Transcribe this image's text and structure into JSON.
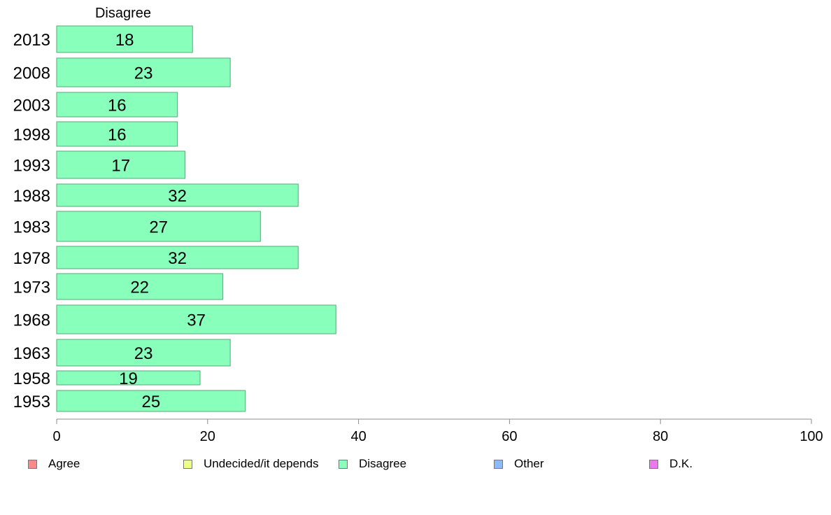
{
  "chart_data": {
    "type": "bar",
    "orientation": "horizontal",
    "title": "Disagree",
    "categories": [
      "2013",
      "2008",
      "2003",
      "1998",
      "1993",
      "1988",
      "1983",
      "1978",
      "1973",
      "1968",
      "1963",
      "1958",
      "1953"
    ],
    "values": [
      18,
      23,
      16,
      16,
      17,
      32,
      27,
      32,
      22,
      37,
      23,
      19,
      25
    ],
    "xlim": [
      0,
      100
    ],
    "xticks": [
      "0",
      "20",
      "40",
      "60",
      "80",
      "100"
    ],
    "bar_color": "#88ffbb",
    "grid": false,
    "legend_position": "bottom",
    "legend": [
      {
        "label": "Agree",
        "color": "#ff8888"
      },
      {
        "label": "Undecided/it depends",
        "color": "#eeff88"
      },
      {
        "label": "Disagree",
        "color": "#88ffbb"
      },
      {
        "label": "Other",
        "color": "#88bbff"
      },
      {
        "label": "D.K.",
        "color": "#ee77ee"
      }
    ]
  }
}
